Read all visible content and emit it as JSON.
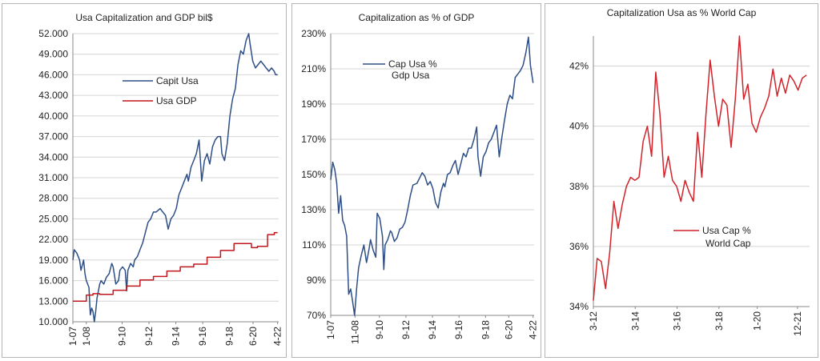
{
  "chart_data": [
    {
      "type": "line",
      "title": "Usa Capitalization and GDP bil$",
      "xlabel": "",
      "ylabel": "",
      "ylim": [
        10000,
        52000
      ],
      "yticks": [
        "52.000",
        "49.000",
        "46.000",
        "43.000",
        "40.000",
        "37.000",
        "34.000",
        "31.000",
        "28.000",
        "25.000",
        "22.000",
        "19.000",
        "16.000",
        "13.000",
        "10.000"
      ],
      "ytick_values": [
        52000,
        49000,
        46000,
        43000,
        40000,
        37000,
        34000,
        31000,
        28000,
        25000,
        22000,
        19000,
        16000,
        13000,
        10000
      ],
      "xlim": [
        2007,
        2022.33
      ],
      "xticks": [
        "1-07",
        "1-08",
        "9-10",
        "9-12",
        "9-14",
        "9-16",
        "9-18",
        "6-20",
        "4-22"
      ],
      "xtick_values": [
        2007.0,
        2008.0,
        2010.67,
        2012.67,
        2014.67,
        2016.67,
        2018.67,
        2020.42,
        2022.25
      ],
      "grid": true,
      "legend_position": "upper-left",
      "series": [
        {
          "name": "Capit Usa",
          "color": "#2e4f86",
          "x": [
            2007.0,
            2007.1,
            2007.3,
            2007.5,
            2007.6,
            2007.8,
            2007.9,
            2008.0,
            2008.2,
            2008.3,
            2008.4,
            2008.5,
            2008.6,
            2008.7,
            2008.8,
            2008.9,
            2009.0,
            2009.1,
            2009.3,
            2009.5,
            2009.7,
            2009.9,
            2010.0,
            2010.2,
            2010.4,
            2010.5,
            2010.7,
            2010.9,
            2011.0,
            2011.1,
            2011.3,
            2011.5,
            2011.6,
            2011.8,
            2012.0,
            2012.2,
            2012.4,
            2012.6,
            2012.8,
            2013.0,
            2013.2,
            2013.5,
            2013.7,
            2013.9,
            2014.1,
            2014.3,
            2014.5,
            2014.7,
            2014.9,
            2015.1,
            2015.3,
            2015.5,
            2015.6,
            2015.8,
            2016.0,
            2016.2,
            2016.4,
            2016.6,
            2016.8,
            2017.0,
            2017.2,
            2017.4,
            2017.6,
            2017.8,
            2018.0,
            2018.1,
            2018.3,
            2018.5,
            2018.7,
            2018.9,
            2019.1,
            2019.3,
            2019.5,
            2019.7,
            2019.9,
            2020.1,
            2020.2,
            2020.4,
            2020.6,
            2020.8,
            2021.0,
            2021.2,
            2021.4,
            2021.6,
            2021.8,
            2022.0,
            2022.1,
            2022.25
          ],
          "values": [
            19000,
            20500,
            20000,
            19000,
            17500,
            19000,
            17000,
            16000,
            15000,
            11000,
            12000,
            11500,
            10000,
            11500,
            13500,
            14500,
            15500,
            16000,
            15500,
            16500,
            17000,
            18500,
            18000,
            15500,
            16000,
            17500,
            18000,
            17500,
            14500,
            17500,
            18500,
            18000,
            19000,
            19500,
            20500,
            21500,
            23000,
            24500,
            25000,
            26000,
            26000,
            26500,
            26000,
            25500,
            23500,
            25000,
            25500,
            26500,
            28500,
            29500,
            30500,
            31500,
            30500,
            32500,
            33500,
            34500,
            36500,
            30500,
            33500,
            34500,
            33000,
            35500,
            36500,
            37000,
            37000,
            34500,
            33500,
            36000,
            40000,
            42500,
            44000,
            47500,
            49500,
            49000,
            51000,
            52000,
            50500,
            48000,
            47000,
            47500,
            48000,
            47500,
            47000,
            46500,
            47000,
            46500,
            46000,
            46000
          ]
        },
        {
          "name": "Usa GDP",
          "color": "#c0171e",
          "x": [
            2007.0,
            2007.75,
            2008.0,
            2008.5,
            2009.0,
            2010.0,
            2011.0,
            2012.0,
            2013.0,
            2014.0,
            2015.0,
            2016.0,
            2017.0,
            2018.0,
            2019.0,
            2020.0,
            2020.3,
            2020.75,
            2021.0,
            2021.5,
            2022.0,
            2022.25
          ],
          "values": [
            13000,
            13000,
            13900,
            14100,
            14000,
            14600,
            15200,
            16100,
            16600,
            17400,
            18000,
            18400,
            19400,
            20400,
            21400,
            21400,
            20800,
            21000,
            21000,
            22700,
            23000,
            23000
          ],
          "step": true
        }
      ]
    },
    {
      "type": "line",
      "title": "Capitalization as % of GDP",
      "xlabel": "",
      "ylabel": "",
      "ylim": [
        70,
        230
      ],
      "yticks": [
        "230%",
        "210%",
        "190%",
        "170%",
        "150%",
        "130%",
        "110%",
        "90%",
        "70%"
      ],
      "ytick_values": [
        230,
        210,
        190,
        170,
        150,
        130,
        110,
        90,
        70
      ],
      "xlim": [
        2007,
        2022.33
      ],
      "xticks": [
        "1-07",
        "11-08",
        "9-10",
        "9-12",
        "9-14",
        "9-16",
        "9-18",
        "6-20",
        "4-22"
      ],
      "xtick_values": [
        2007.0,
        2008.83,
        2010.67,
        2012.67,
        2014.67,
        2016.67,
        2018.67,
        2020.42,
        2022.25
      ],
      "grid": true,
      "legend_position": "upper-left",
      "series": [
        {
          "name": "Cap Usa % Gdp Usa",
          "color": "#2e4f86",
          "x": [
            2007.0,
            2007.15,
            2007.3,
            2007.45,
            2007.6,
            2007.75,
            2007.9,
            2008.05,
            2008.2,
            2008.35,
            2008.5,
            2008.65,
            2008.8,
            2008.95,
            2009.1,
            2009.3,
            2009.5,
            2009.7,
            2009.9,
            2010.0,
            2010.2,
            2010.4,
            2010.5,
            2010.7,
            2010.9,
            2011.0,
            2011.1,
            2011.3,
            2011.5,
            2011.6,
            2011.8,
            2012.0,
            2012.2,
            2012.4,
            2012.6,
            2012.8,
            2013.0,
            2013.2,
            2013.5,
            2013.7,
            2013.9,
            2014.1,
            2014.3,
            2014.5,
            2014.7,
            2014.9,
            2015.1,
            2015.3,
            2015.5,
            2015.6,
            2015.8,
            2016.0,
            2016.2,
            2016.4,
            2016.6,
            2016.8,
            2017.0,
            2017.2,
            2017.4,
            2017.6,
            2017.8,
            2018.0,
            2018.1,
            2018.3,
            2018.5,
            2018.7,
            2018.9,
            2019.1,
            2019.3,
            2019.5,
            2019.7,
            2019.9,
            2020.1,
            2020.3,
            2020.5,
            2020.7,
            2020.9,
            2021.1,
            2021.3,
            2021.5,
            2021.7,
            2021.9,
            2022.05,
            2022.25
          ],
          "values": [
            147,
            157,
            153,
            145,
            128,
            138,
            124,
            121,
            115,
            82,
            85,
            78,
            70,
            85,
            97,
            104,
            110,
            100,
            108,
            113,
            107,
            103,
            128,
            125,
            115,
            96,
            110,
            113,
            118,
            117,
            112,
            114,
            119,
            120,
            123,
            130,
            138,
            144,
            145,
            148,
            151,
            149,
            144,
            146,
            142,
            134,
            131,
            140,
            145,
            143,
            150,
            151,
            155,
            158,
            150,
            156,
            162,
            160,
            165,
            165,
            170,
            177,
            160,
            149,
            160,
            163,
            168,
            170,
            174,
            178,
            160,
            171,
            181,
            190,
            195,
            193,
            205,
            207,
            209,
            212,
            219,
            228,
            212,
            202
          ]
        }
      ]
    },
    {
      "type": "line",
      "title": "Capitalization Usa as % World Cap",
      "xlabel": "",
      "ylabel": "",
      "ylim": [
        34,
        43
      ],
      "yticks": [
        "42%",
        "40%",
        "38%",
        "36%",
        "34%"
      ],
      "ytick_values": [
        42,
        40,
        38,
        36,
        34
      ],
      "xlim": [
        2012.17,
        2022.5
      ],
      "xticks": [
        "3-12",
        "3-14",
        "3-16",
        "3-18",
        "1-20",
        "12-21"
      ],
      "xtick_values": [
        2012.17,
        2014.17,
        2016.17,
        2018.17,
        2020.0,
        2021.92
      ],
      "grid": true,
      "legend_position": "lower-right",
      "series": [
        {
          "name": "Usa Cap % World Cap",
          "color": "#d2232a",
          "x": [
            2012.17,
            2012.35,
            2012.55,
            2012.75,
            2012.95,
            2013.15,
            2013.35,
            2013.55,
            2013.75,
            2013.95,
            2014.15,
            2014.35,
            2014.55,
            2014.75,
            2014.95,
            2015.15,
            2015.35,
            2015.55,
            2015.75,
            2015.95,
            2016.15,
            2016.35,
            2016.55,
            2016.75,
            2016.95,
            2017.15,
            2017.35,
            2017.55,
            2017.75,
            2017.95,
            2018.15,
            2018.35,
            2018.55,
            2018.75,
            2018.95,
            2019.15,
            2019.35,
            2019.55,
            2019.75,
            2019.95,
            2020.15,
            2020.35,
            2020.55,
            2020.75,
            2020.95,
            2021.15,
            2021.35,
            2021.55,
            2021.75,
            2021.95,
            2022.15,
            2022.35
          ],
          "values": [
            34.2,
            35.6,
            35.5,
            34.6,
            35.8,
            37.5,
            36.6,
            37.4,
            38.0,
            38.3,
            38.2,
            38.3,
            39.5,
            40.0,
            39.0,
            41.8,
            40.4,
            38.3,
            39.0,
            38.2,
            38.0,
            37.5,
            38.2,
            37.8,
            37.5,
            39.8,
            38.3,
            40.4,
            42.2,
            41.0,
            40.0,
            40.9,
            40.7,
            39.3,
            40.9,
            43.0,
            40.9,
            41.4,
            40.1,
            39.8,
            40.3,
            40.6,
            41.0,
            41.9,
            41.0,
            41.6,
            41.1,
            41.7,
            41.5,
            41.2,
            41.6,
            41.7
          ]
        }
      ]
    }
  ]
}
